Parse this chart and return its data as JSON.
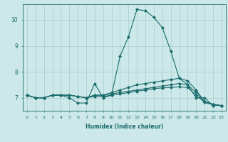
{
  "title": "",
  "xlabel": "Humidex (Indice chaleur)",
  "ylabel": "",
  "bg_color": "#cce8e8",
  "grid_color": "#aacccc",
  "line_color": "#1a6b6b",
  "xlim": [
    -0.5,
    23.5
  ],
  "ylim": [
    6.5,
    10.6
  ],
  "yticks": [
    7,
    8,
    9,
    10
  ],
  "xticks": [
    0,
    1,
    2,
    3,
    4,
    5,
    6,
    7,
    8,
    9,
    10,
    11,
    12,
    13,
    14,
    15,
    16,
    17,
    18,
    19,
    20,
    21,
    22,
    23
  ],
  "series": [
    [
      7.1,
      7.0,
      7.0,
      7.1,
      7.1,
      7.0,
      6.8,
      6.8,
      7.55,
      7.0,
      7.1,
      8.6,
      9.35,
      10.4,
      10.35,
      10.1,
      9.7,
      8.8,
      7.75,
      7.5,
      7.0,
      7.0,
      6.7,
      6.7
    ],
    [
      7.1,
      7.0,
      7.0,
      7.1,
      7.1,
      7.1,
      7.05,
      7.0,
      7.1,
      7.1,
      7.2,
      7.3,
      7.4,
      7.5,
      7.55,
      7.6,
      7.65,
      7.7,
      7.75,
      7.65,
      7.3,
      6.85,
      6.75,
      6.7
    ],
    [
      7.1,
      7.0,
      7.0,
      7.1,
      7.1,
      7.1,
      7.05,
      7.0,
      7.1,
      7.1,
      7.15,
      7.2,
      7.25,
      7.3,
      7.35,
      7.4,
      7.45,
      7.5,
      7.55,
      7.5,
      7.2,
      6.85,
      6.75,
      6.7
    ],
    [
      7.1,
      7.0,
      7.0,
      7.1,
      7.1,
      7.1,
      7.05,
      7.0,
      7.05,
      7.05,
      7.1,
      7.15,
      7.2,
      7.25,
      7.3,
      7.35,
      7.38,
      7.4,
      7.42,
      7.4,
      7.1,
      6.82,
      6.73,
      6.7
    ]
  ]
}
